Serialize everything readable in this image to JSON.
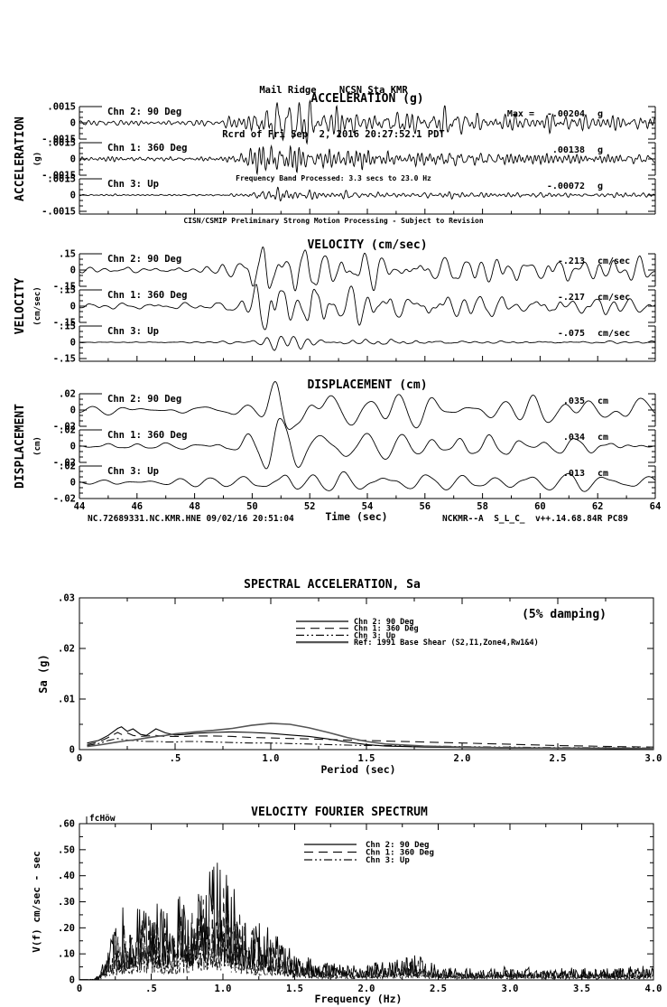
{
  "header": {
    "line1": "Mail Ridge    NCSN Sta KMR",
    "line2": "Rcrd of Fri Sep  2, 2016 20:27:52.1 PDT",
    "line3": "Frequency Band Processed: 3.3 secs to 23.0 Hz",
    "line4": "CISN/CSMIP Preliminary Strong Motion Processing - Subject to Revision"
  },
  "footer": {
    "left": "NC.72689331.NC.KMR.HNE 09/02/16 20:51:04",
    "right": "NCKMR--A  S_L_C_  v++.14.68.84R PC89"
  },
  "chart_data": [
    {
      "id": "acceleration",
      "type": "line",
      "title": "ACCELERATION (g)",
      "side_label": "ACCELERATION",
      "side_sublabel": "(g)",
      "x_range": [
        44,
        64
      ],
      "ylim": [
        -0.0015,
        0.0015
      ],
      "ytick_labels": [
        ".0015",
        "0",
        "-.0015"
      ],
      "synthesis": {
        "freq_band": [
          2.2,
          7.5
        ],
        "envelope": [
          [
            44,
            0.13
          ],
          [
            48.8,
            0.15
          ],
          [
            49.6,
            0.35
          ],
          [
            50.3,
            1.0
          ],
          [
            51.8,
            0.85
          ],
          [
            53.5,
            0.62
          ],
          [
            56,
            0.5
          ],
          [
            59,
            0.45
          ],
          [
            64,
            0.38
          ]
        ]
      },
      "traces": [
        {
          "channel": "Chn 2: 90 Deg",
          "max_prefix": "Max =",
          "max_value": "-.00204",
          "unit": "g",
          "peak": 0.00204,
          "seed": 101
        },
        {
          "channel": "Chn 1: 360 Deg",
          "max_value": ".00138",
          "unit": "g",
          "peak": 0.00138,
          "seed": 102
        },
        {
          "channel": "Chn 3: Up",
          "max_value": "-.00072",
          "unit": "g",
          "peak": 0.00072,
          "seed": 103
        }
      ]
    },
    {
      "id": "velocity",
      "type": "line",
      "title": "VELOCITY (cm/sec)",
      "side_label": "VELOCITY",
      "side_sublabel": "(cm/sec)",
      "x_range": [
        44,
        64
      ],
      "ylim": [
        -0.15,
        0.15
      ],
      "ytick_labels": [
        ".15",
        "0",
        "-.15"
      ],
      "synthesis": {
        "freq_band": [
          0.7,
          2.4
        ],
        "envelope": [
          [
            44,
            0.08
          ],
          [
            48.8,
            0.1
          ],
          [
            49.8,
            0.45
          ],
          [
            50.7,
            1.0
          ],
          [
            52.3,
            0.75
          ],
          [
            54.5,
            0.45
          ],
          [
            57,
            0.33
          ],
          [
            60,
            0.28
          ],
          [
            64,
            0.22
          ]
        ]
      },
      "traces": [
        {
          "channel": "Chn 2: 90 Deg",
          "max_value": "-.213",
          "unit": "cm/sec",
          "peak": 0.213,
          "seed": 201
        },
        {
          "channel": "Chn 1: 360 Deg",
          "max_value": "-.217",
          "unit": "cm/sec",
          "peak": 0.217,
          "seed": 202
        },
        {
          "channel": "Chn 3: Up",
          "max_value": "-.075",
          "unit": "cm/sec",
          "peak": 0.075,
          "seed": 203
        }
      ]
    },
    {
      "id": "displacement",
      "type": "line",
      "title": "DISPLACEMENT (cm)",
      "side_label": "DISPLACEMENT",
      "side_sublabel": "(cm)",
      "x_range": [
        44,
        64
      ],
      "xlabel": "Time (sec)",
      "x_ticks": [
        {
          "v": 44,
          "label": "44"
        },
        {
          "v": 46,
          "label": "46"
        },
        {
          "v": 48,
          "label": "48"
        },
        {
          "v": 50,
          "label": "50"
        },
        {
          "v": 52,
          "label": "52"
        },
        {
          "v": 54,
          "label": "54"
        },
        {
          "v": 56,
          "label": "56"
        },
        {
          "v": 58,
          "label": "58"
        },
        {
          "v": 60,
          "label": "60"
        },
        {
          "v": 62,
          "label": "62"
        },
        {
          "v": 64,
          "label": "64"
        }
      ],
      "ylim": [
        -0.02,
        0.02
      ],
      "ytick_labels": [
        ".02",
        "0",
        "-.02"
      ],
      "synthesis": {
        "freq_band": [
          0.45,
          1.1
        ],
        "envelope": [
          [
            44,
            0.13
          ],
          [
            49.2,
            0.18
          ],
          [
            50.2,
            0.55
          ],
          [
            50.9,
            1.0
          ],
          [
            52.2,
            0.7
          ],
          [
            54,
            0.5
          ],
          [
            57,
            0.42
          ],
          [
            60,
            0.38
          ],
          [
            64,
            0.33
          ]
        ]
      },
      "traces": [
        {
          "channel": "Chn 2: 90 Deg",
          "max_value": ".035",
          "unit": "cm",
          "peak": 0.035,
          "seed": 301
        },
        {
          "channel": "Chn 1: 360 Deg",
          "max_value": ".034",
          "unit": "cm",
          "peak": 0.034,
          "seed": 302
        },
        {
          "channel": "Chn 3: Up",
          "max_value": ".013",
          "unit": "cm",
          "peak": 0.013,
          "seed": 303
        }
      ]
    },
    {
      "id": "spectral_acceleration",
      "type": "line",
      "title": "SPECTRAL ACCELERATION, Sa",
      "annotation": "(5% damping)",
      "xlabel": "Period (sec)",
      "ylabel": "Sa (g)",
      "xlim": [
        0,
        3.0
      ],
      "ylim": [
        0,
        0.03
      ],
      "x_ticks": [
        {
          "v": 0,
          "label": "0"
        },
        {
          "v": 0.5,
          "label": ".5"
        },
        {
          "v": 1.0,
          "label": "1.0"
        },
        {
          "v": 1.5,
          "label": "1.5"
        },
        {
          "v": 2.0,
          "label": "2.0"
        },
        {
          "v": 2.5,
          "label": "2.5"
        },
        {
          "v": 3.0,
          "label": "3.0"
        }
      ],
      "y_ticks": [
        {
          "v": 0,
          "label": "0"
        },
        {
          "v": 0.01,
          "label": ".01"
        },
        {
          "v": 0.02,
          "label": ".02"
        },
        {
          "v": 0.03,
          "label": ".03"
        }
      ],
      "series": [
        {
          "name": "Chn 2: 90 Deg",
          "style": "solid",
          "x": [
            0.04,
            0.1,
            0.15,
            0.2,
            0.22,
            0.25,
            0.28,
            0.32,
            0.35,
            0.4,
            0.42,
            0.45,
            0.5,
            0.55,
            0.6,
            0.7,
            0.8,
            0.9,
            1.0,
            1.1,
            1.2,
            1.3,
            1.4,
            1.5,
            1.6,
            1.8,
            2.0,
            2.2,
            2.5,
            2.8,
            3.0
          ],
          "y": [
            0.0013,
            0.0018,
            0.0028,
            0.0042,
            0.0045,
            0.0036,
            0.0041,
            0.003,
            0.0028,
            0.0041,
            0.0038,
            0.0033,
            0.0029,
            0.003,
            0.0032,
            0.0034,
            0.0035,
            0.0034,
            0.0032,
            0.0029,
            0.0026,
            0.0021,
            0.0015,
            0.001,
            0.0007,
            0.0005,
            0.0004,
            0.0003,
            0.0003,
            0.0002,
            0.0002
          ]
        },
        {
          "name": "Chn 1: 360 Deg",
          "style": "longdash",
          "x": [
            0.04,
            0.1,
            0.15,
            0.2,
            0.22,
            0.25,
            0.28,
            0.32,
            0.35,
            0.4,
            0.42,
            0.45,
            0.5,
            0.55,
            0.6,
            0.7,
            0.8,
            0.9,
            1.0,
            1.1,
            1.2,
            1.3,
            1.4,
            1.5,
            1.6,
            1.8,
            2.0,
            2.2,
            2.5,
            2.8,
            3.0
          ],
          "y": [
            0.001,
            0.0015,
            0.0024,
            0.0034,
            0.003,
            0.0033,
            0.0028,
            0.0026,
            0.0027,
            0.0028,
            0.0027,
            0.0026,
            0.0026,
            0.0026,
            0.0027,
            0.0027,
            0.0026,
            0.0024,
            0.0023,
            0.0022,
            0.0021,
            0.002,
            0.0019,
            0.0018,
            0.0017,
            0.0015,
            0.0013,
            0.0011,
            0.0008,
            0.0006,
            0.0005
          ]
        },
        {
          "name": "Chn 3: Up",
          "style": "dashdotdot",
          "x": [
            0.04,
            0.1,
            0.15,
            0.2,
            0.22,
            0.25,
            0.28,
            0.32,
            0.35,
            0.4,
            0.42,
            0.45,
            0.5,
            0.55,
            0.6,
            0.7,
            0.8,
            0.9,
            1.0,
            1.1,
            1.2,
            1.3,
            1.4,
            1.5,
            1.6,
            1.8,
            2.0,
            2.2,
            2.5,
            2.8,
            3.0
          ],
          "y": [
            0.0008,
            0.0012,
            0.0018,
            0.0022,
            0.002,
            0.0019,
            0.0018,
            0.0017,
            0.0016,
            0.0016,
            0.0016,
            0.0015,
            0.0015,
            0.0016,
            0.0016,
            0.0015,
            0.0014,
            0.0013,
            0.0013,
            0.0012,
            0.0011,
            0.001,
            0.0009,
            0.0008,
            0.0008,
            0.0007,
            0.0006,
            0.0005,
            0.0004,
            0.0004,
            0.0003
          ]
        },
        {
          "name": "Ref: 1991 Base Shear (S2,I1,Zone4,Rw1&4)",
          "style": "ref",
          "x": [
            0.04,
            0.1,
            0.15,
            0.2,
            0.22,
            0.25,
            0.28,
            0.32,
            0.35,
            0.4,
            0.42,
            0.45,
            0.5,
            0.55,
            0.6,
            0.7,
            0.8,
            0.9,
            1.0,
            1.1,
            1.2,
            1.3,
            1.4,
            1.5,
            1.6,
            1.8,
            2.0,
            2.2,
            2.5,
            2.8,
            3.0
          ],
          "y": [
            0.0006,
            0.0009,
            0.0012,
            0.0015,
            0.0016,
            0.0018,
            0.0019,
            0.0021,
            0.0023,
            0.0026,
            0.0027,
            0.0028,
            0.0031,
            0.0033,
            0.0035,
            0.0038,
            0.0042,
            0.0048,
            0.0052,
            0.005,
            0.0043,
            0.0034,
            0.0024,
            0.0016,
            0.0011,
            0.0007,
            0.0005,
            0.0004,
            0.0003,
            0.0003,
            0.0002
          ]
        }
      ]
    },
    {
      "id": "fourier",
      "type": "line",
      "title": "VELOCITY FOURIER SPECTRUM",
      "corner_label": "fcHöw",
      "xlabel": "Frequency (Hz)",
      "ylabel": "V(f)  cm/sec - sec",
      "xlim": [
        0,
        4.0
      ],
      "ylim": [
        0,
        0.6
      ],
      "x_ticks": [
        {
          "v": 0,
          "label": "0"
        },
        {
          "v": 0.5,
          "label": ".5"
        },
        {
          "v": 1.0,
          "label": "1.0"
        },
        {
          "v": 1.5,
          "label": "1.5"
        },
        {
          "v": 2.0,
          "label": "2.0"
        },
        {
          "v": 2.5,
          "label": "2.5"
        },
        {
          "v": 3.0,
          "label": "3.0"
        },
        {
          "v": 3.5,
          "label": "3.5"
        },
        {
          "v": 4.0,
          "label": "4.0"
        }
      ],
      "y_ticks": [
        {
          "v": 0,
          "label": "0"
        },
        {
          "v": 0.1,
          "label": ".10"
        },
        {
          "v": 0.2,
          "label": ".20"
        },
        {
          "v": 0.3,
          "label": ".30"
        },
        {
          "v": 0.4,
          "label": ".40"
        },
        {
          "v": 0.5,
          "label": ".50"
        },
        {
          "v": 0.6,
          "label": ".60"
        }
      ],
      "envelope": [
        [
          0,
          0
        ],
        [
          0.1,
          0.01
        ],
        [
          0.15,
          0.04
        ],
        [
          0.2,
          0.12
        ],
        [
          0.25,
          0.2
        ],
        [
          0.3,
          0.27
        ],
        [
          0.35,
          0.24
        ],
        [
          0.4,
          0.3
        ],
        [
          0.45,
          0.27
        ],
        [
          0.5,
          0.3
        ],
        [
          0.55,
          0.27
        ],
        [
          0.6,
          0.31
        ],
        [
          0.65,
          0.28
        ],
        [
          0.7,
          0.3
        ],
        [
          0.75,
          0.28
        ],
        [
          0.8,
          0.33
        ],
        [
          0.85,
          0.38
        ],
        [
          0.9,
          0.42
        ],
        [
          0.95,
          0.45
        ],
        [
          1.0,
          0.43
        ],
        [
          1.05,
          0.36
        ],
        [
          1.1,
          0.3
        ],
        [
          1.15,
          0.26
        ],
        [
          1.2,
          0.22
        ],
        [
          1.3,
          0.19
        ],
        [
          1.4,
          0.16
        ],
        [
          1.5,
          0.11
        ],
        [
          1.6,
          0.08
        ],
        [
          1.7,
          0.06
        ],
        [
          1.8,
          0.06
        ],
        [
          1.9,
          0.055
        ],
        [
          2.0,
          0.06
        ],
        [
          2.1,
          0.065
        ],
        [
          2.2,
          0.07
        ],
        [
          2.3,
          0.09
        ],
        [
          2.4,
          0.08
        ],
        [
          2.5,
          0.05
        ],
        [
          2.7,
          0.04
        ],
        [
          2.9,
          0.045
        ],
        [
          3.1,
          0.05
        ],
        [
          3.3,
          0.04
        ],
        [
          3.5,
          0.045
        ],
        [
          3.7,
          0.04
        ],
        [
          3.9,
          0.05
        ],
        [
          4.0,
          0.055
        ]
      ],
      "channels": [
        {
          "name": "Chn 2: 90 Deg",
          "style": "solid",
          "scale": 1.0,
          "seed": 401
        },
        {
          "name": "Chn 1: 360 Deg",
          "style": "longdash",
          "scale": 0.8,
          "seed": 402
        },
        {
          "name": "Chn 3: Up",
          "style": "dashdotdot",
          "scale": 0.45,
          "seed": 403
        }
      ]
    }
  ]
}
